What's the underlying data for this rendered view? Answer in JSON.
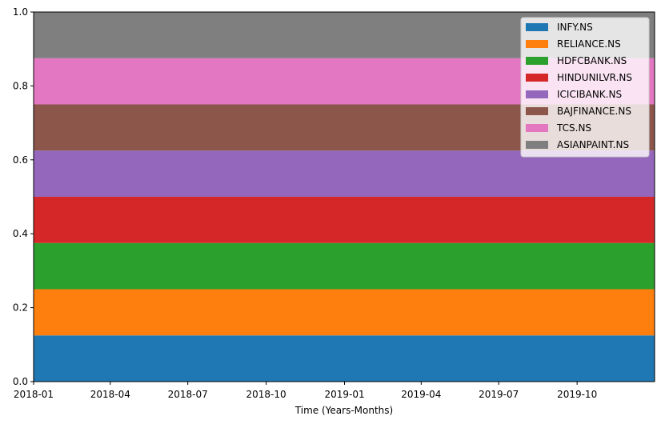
{
  "chart_data": {
    "type": "area",
    "stacked": true,
    "xlabel": "Time (Years-Months)",
    "ylabel": "",
    "title": "",
    "x_range": [
      "2018-01-01",
      "2019-12-31"
    ],
    "ylim": [
      0,
      1
    ],
    "x_ticks": [
      "2018-01",
      "2018-04",
      "2018-07",
      "2018-10",
      "2019-01",
      "2019-04",
      "2019-07",
      "2019-10"
    ],
    "y_ticks": [
      "0.0",
      "0.2",
      "0.4",
      "0.6",
      "0.8",
      "1.0"
    ],
    "grid": false,
    "legend_position": "top-right",
    "series": [
      {
        "name": "INFY.NS",
        "color": "#1f77b4",
        "values": [
          0.125,
          0.125
        ]
      },
      {
        "name": "RELIANCE.NS",
        "color": "#ff7f0e",
        "values": [
          0.125,
          0.125
        ]
      },
      {
        "name": "HDFCBANK.NS",
        "color": "#2ca02c",
        "values": [
          0.125,
          0.125
        ]
      },
      {
        "name": "HINDUNILVR.NS",
        "color": "#d62728",
        "values": [
          0.125,
          0.125
        ]
      },
      {
        "name": "ICICIBANK.NS",
        "color": "#9467bd",
        "values": [
          0.125,
          0.125
        ]
      },
      {
        "name": "BAJFINANCE.NS",
        "color": "#8c564b",
        "values": [
          0.125,
          0.125
        ]
      },
      {
        "name": "TCS.NS",
        "color": "#e377c2",
        "values": [
          0.125,
          0.125
        ]
      },
      {
        "name": "ASIANPAINT.NS",
        "color": "#7f7f7f",
        "values": [
          0.125,
          0.125
        ]
      }
    ],
    "x": [
      "2018-01-01",
      "2019-12-31"
    ]
  }
}
